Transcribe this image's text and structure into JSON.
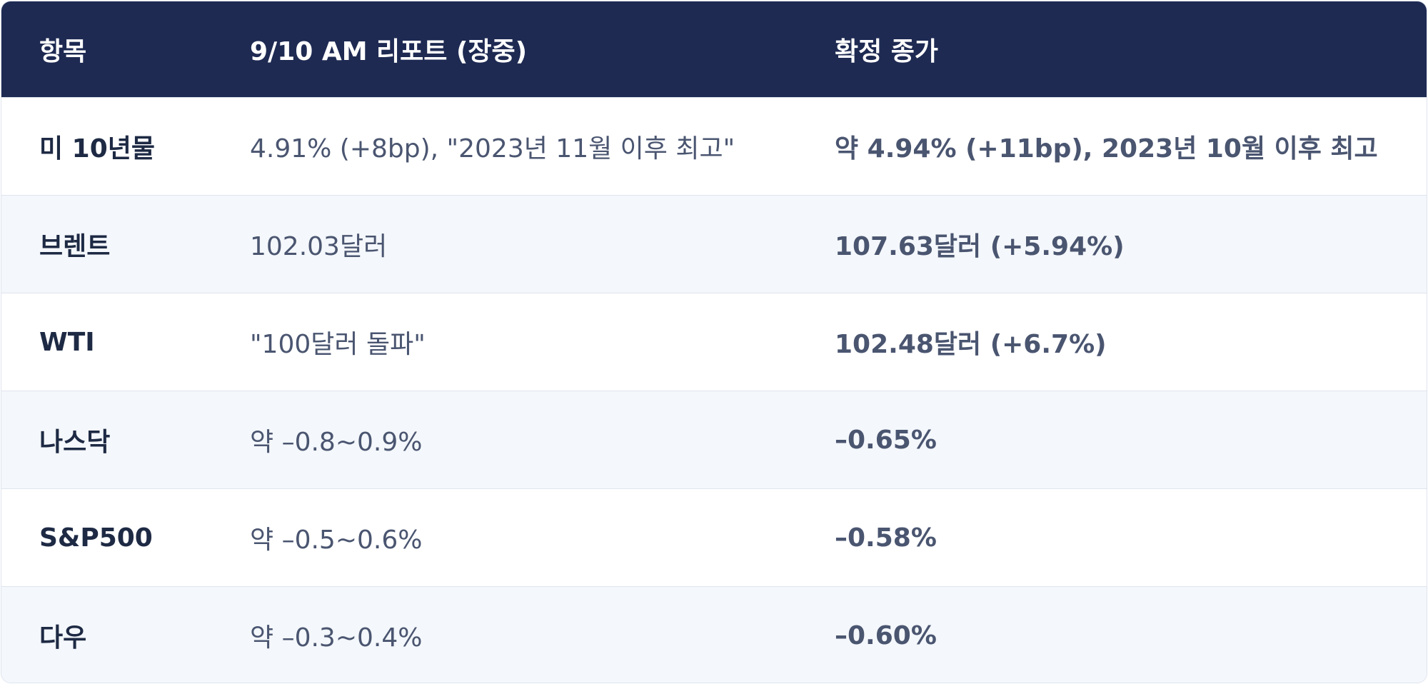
{
  "table": {
    "headers": [
      "항목",
      "9/10 AM 리포트 (장중)",
      "확정 종가"
    ],
    "rows": [
      [
        "미 10년물",
        "4.91% (+8bp), \"2023년 11월 이후 최고\"",
        "약 4.94% (+11bp), 2023년 10월 이후 최고"
      ],
      [
        "브렌트",
        "102.03달러",
        "107.63달러 (+5.94%)"
      ],
      [
        "WTI",
        "\"100달러 돌파\"",
        "102.48달러 (+6.7%)"
      ],
      [
        "나스닥",
        "약 –0.8~0.9%",
        "–0.65%"
      ],
      [
        "S&P500",
        "약 –0.5~0.6%",
        "–0.58%"
      ],
      [
        "다우",
        "약 –0.3~0.4%",
        "–0.60%"
      ]
    ]
  }
}
